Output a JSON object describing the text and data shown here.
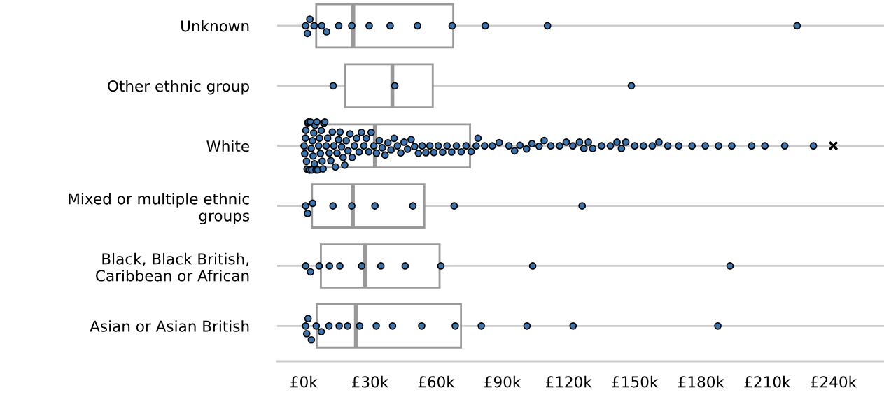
{
  "chart_data": {
    "type": "box",
    "orientation": "horizontal",
    "categories": [
      "Unknown",
      "Other ethnic group",
      "White",
      "Mixed or multiple ethnic\ngroups",
      "Black, Black British,\nCaribbean or African",
      "Asian or Asian British"
    ],
    "boxes": [
      {
        "low": 5.7,
        "q1": 5.7,
        "median": 22.5,
        "q3": 67.8,
        "high": 67.8
      },
      {
        "low": 18.9,
        "q1": 18.9,
        "median": 40.2,
        "q3": 58.5,
        "high": 58.5
      },
      {
        "low": 1,
        "q1": 1,
        "median": 32.3,
        "q3": 75.4,
        "high": 75.4
      },
      {
        "low": 3.8,
        "q1": 3.8,
        "median": 22.3,
        "q3": 54.7,
        "high": 54.7
      },
      {
        "low": 7.8,
        "q1": 7.8,
        "median": 27.9,
        "q3": 61.6,
        "high": 61.6
      },
      {
        "low": 5.9,
        "q1": 5.9,
        "median": 23.7,
        "q3": 71.3,
        "high": 71.3
      }
    ],
    "series": [
      {
        "type": "scatter",
        "marker": "circle",
        "color": "#3b75af",
        "x": [
          "Unknown",
          "Unknown",
          "Unknown",
          "Unknown",
          "Unknown",
          "Unknown",
          "Unknown",
          "Unknown",
          "Unknown",
          "Unknown",
          "Unknown",
          "Unknown",
          "Unknown",
          "Unknown",
          "Unknown",
          "Other ethnic group",
          "Other ethnic group",
          "Other ethnic group",
          "White",
          "White",
          "White",
          "White",
          "White",
          "White",
          "White",
          "White",
          "White",
          "White",
          "White",
          "White",
          "White",
          "White",
          "White",
          "White",
          "White",
          "White",
          "White",
          "White",
          "White",
          "White",
          "White",
          "White",
          "White",
          "White",
          "White",
          "White",
          "White",
          "White",
          "White",
          "White",
          "White",
          "White",
          "White",
          "White",
          "White",
          "White",
          "White",
          "White",
          "White",
          "White",
          "White",
          "White",
          "White",
          "White",
          "White",
          "White",
          "White",
          "White",
          "White",
          "White",
          "White",
          "White",
          "White",
          "White",
          "White",
          "White",
          "White",
          "White",
          "White",
          "White",
          "White",
          "White",
          "White",
          "White",
          "White",
          "White",
          "White",
          "White",
          "White",
          "White",
          "White",
          "White",
          "White",
          "White",
          "White",
          "White",
          "White",
          "White",
          "White",
          "White",
          "White",
          "White",
          "White",
          "White",
          "White",
          "White",
          "White",
          "White",
          "White",
          "White",
          "White",
          "White",
          "White",
          "White",
          "White",
          "White",
          "White",
          "White",
          "White",
          "White",
          "White",
          "White",
          "White",
          "White",
          "White",
          "White",
          "White",
          "White",
          "White",
          "White",
          "White",
          "White",
          "White",
          "White",
          "White",
          "White",
          "White",
          "White",
          "Mixed or multiple ethnic\ngroups",
          "Mixed or multiple ethnic\ngroups",
          "Mixed or multiple ethnic\ngroups",
          "Mixed or multiple ethnic\ngroups",
          "Mixed or multiple ethnic\ngroups",
          "Mixed or multiple ethnic\ngroups",
          "Mixed or multiple ethnic\ngroups",
          "Mixed or multiple ethnic\ngroups",
          "Mixed or multiple ethnic\ngroups",
          "Black, Black British,\nCaribbean or African",
          "Black, Black British,\nCaribbean or African",
          "Black, Black British,\nCaribbean or African",
          "Black, Black British,\nCaribbean or African",
          "Black, Black British,\nCaribbean or African",
          "Black, Black British,\nCaribbean or African",
          "Black, Black British,\nCaribbean or African",
          "Black, Black British,\nCaribbean or African",
          "Black, Black British,\nCaribbean or African",
          "Black, Black British,\nCaribbean or African",
          "Black, Black British,\nCaribbean or African",
          "Asian or Asian British",
          "Asian or Asian British",
          "Asian or Asian British",
          "Asian or Asian British",
          "Asian or Asian British",
          "Asian or Asian British",
          "Asian or Asian British",
          "Asian or Asian British",
          "Asian or Asian British",
          "Asian or Asian British",
          "Asian or Asian British",
          "Asian or Asian British",
          "Asian or Asian British",
          "Asian or Asian British",
          "Asian or Asian British",
          "Asian or Asian British",
          "Asian or Asian British",
          "Asian or Asian British"
        ],
        "values": [
          2.8,
          0.9,
          1.7,
          4.8,
          8.2,
          10.4,
          15.9,
          21.8,
          29.7,
          39.2,
          51.6,
          67.3,
          82.3,
          110.5,
          223.6,
          13.4,
          41.3,
          148.5,
          0.2,
          0.5,
          0.8,
          1.0,
          1.3,
          1.6,
          1.9,
          2.2,
          2.5,
          2.8,
          3.1,
          3.4,
          3.7,
          4.0,
          4.3,
          4.6,
          4.9,
          5.2,
          5.6,
          6.0,
          6.4,
          6.8,
          7.2,
          7.6,
          8.0,
          8.4,
          8.8,
          9.2,
          9.6,
          10.2,
          10.9,
          11.6,
          12.3,
          13.0,
          13.7,
          14.4,
          15.1,
          15.8,
          16.5,
          17.2,
          17.9,
          18.6,
          19.3,
          20.1,
          21.0,
          22.0,
          23.0,
          24.0,
          25.1,
          26.2,
          27.3,
          28.4,
          29.5,
          30.6,
          31.8,
          33.0,
          34.3,
          35.6,
          36.9,
          38.2,
          39.6,
          41.0,
          42.5,
          44.0,
          45.5,
          47.1,
          48.7,
          50.3,
          52.0,
          53.7,
          55.4,
          57.2,
          59.0,
          61.0,
          63.0,
          65.0,
          67.1,
          69.2,
          71.4,
          73.6,
          75.9,
          78.2,
          79,
          82,
          85.5,
          88.6,
          93,
          95.6,
          98,
          101,
          103.5,
          106.7,
          109,
          112,
          116,
          119,
          122,
          125,
          127,
          129,
          131,
          135,
          139,
          142,
          144,
          146,
          150,
          154,
          158,
          161,
          165,
          170,
          176,
          182,
          188,
          194,
          203,
          209,
          218,
          231,
          4.1,
          0.9,
          1.8,
          13.3,
          21.8,
          32.3,
          49.5,
          68.2,
          126.2,
          7.0,
          0.9,
          3.1,
          16.4,
          11.7,
          26.3,
          35.0,
          46.0,
          62.2,
          103.8,
          193.2,
          2.0,
          0.9,
          5.7,
          8.0,
          1.4,
          3.5,
          11.5,
          16.1,
          19.9,
          25.4,
          32.9,
          40.3,
          53.5,
          68.7,
          80.5,
          101.2,
          122.1,
          187.7
        ]
      },
      {
        "type": "scatter",
        "marker": "cross",
        "color": "#000000",
        "x": [
          "White"
        ],
        "values": [
          240
        ]
      }
    ],
    "xlim": [
      -12,
      263
    ],
    "xticks": [
      {
        "value": 0,
        "label": "£0k"
      },
      {
        "value": 30,
        "label": "£30k"
      },
      {
        "value": 60,
        "label": "£60k"
      },
      {
        "value": 90,
        "label": "£90k"
      },
      {
        "value": 120,
        "label": "£120k"
      },
      {
        "value": 150,
        "label": "£150k"
      },
      {
        "value": 180,
        "label": "£180k"
      },
      {
        "value": 210,
        "label": "£210k"
      },
      {
        "value": 240,
        "label": "£240k"
      }
    ],
    "grid": "y"
  }
}
